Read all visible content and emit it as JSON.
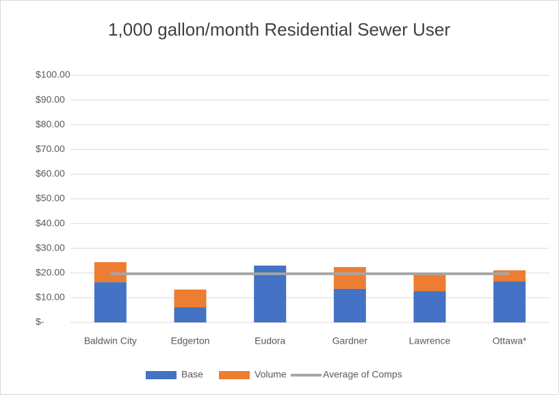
{
  "chart_data": {
    "type": "bar",
    "stacked": true,
    "title": "1,000 gallon/month Residential Sewer User",
    "categories": [
      "Baldwin City",
      "Edgerton",
      "Eudora",
      "Gardner",
      "Lawrence",
      "Ottawa*"
    ],
    "series": [
      {
        "name": "Base",
        "color": "#4472c4",
        "values": [
          16.3,
          6.1,
          23.0,
          13.6,
          12.7,
          16.6
        ]
      },
      {
        "name": "Volume",
        "color": "#ed7d31",
        "values": [
          8.1,
          7.2,
          0,
          8.8,
          6.7,
          4.5
        ]
      },
      {
        "name": "Average of Comps",
        "type": "line",
        "color": "#a5a5a5",
        "values": [
          19.7,
          19.7,
          19.7,
          19.7,
          19.7,
          19.7
        ]
      }
    ],
    "ylim": [
      0,
      100
    ],
    "yticks": [
      {
        "value": 0,
        "label": "$-"
      },
      {
        "value": 10,
        "label": "$10.00"
      },
      {
        "value": 20,
        "label": "$20.00"
      },
      {
        "value": 30,
        "label": "$30.00"
      },
      {
        "value": 40,
        "label": "$40.00"
      },
      {
        "value": 50,
        "label": "$50.00"
      },
      {
        "value": 60,
        "label": "$60.00"
      },
      {
        "value": 70,
        "label": "$70.00"
      },
      {
        "value": 80,
        "label": "$80.00"
      },
      {
        "value": 90,
        "label": "$90.00"
      },
      {
        "value": 100,
        "label": "$100.00"
      }
    ],
    "grid": true,
    "legend": "bottom"
  }
}
